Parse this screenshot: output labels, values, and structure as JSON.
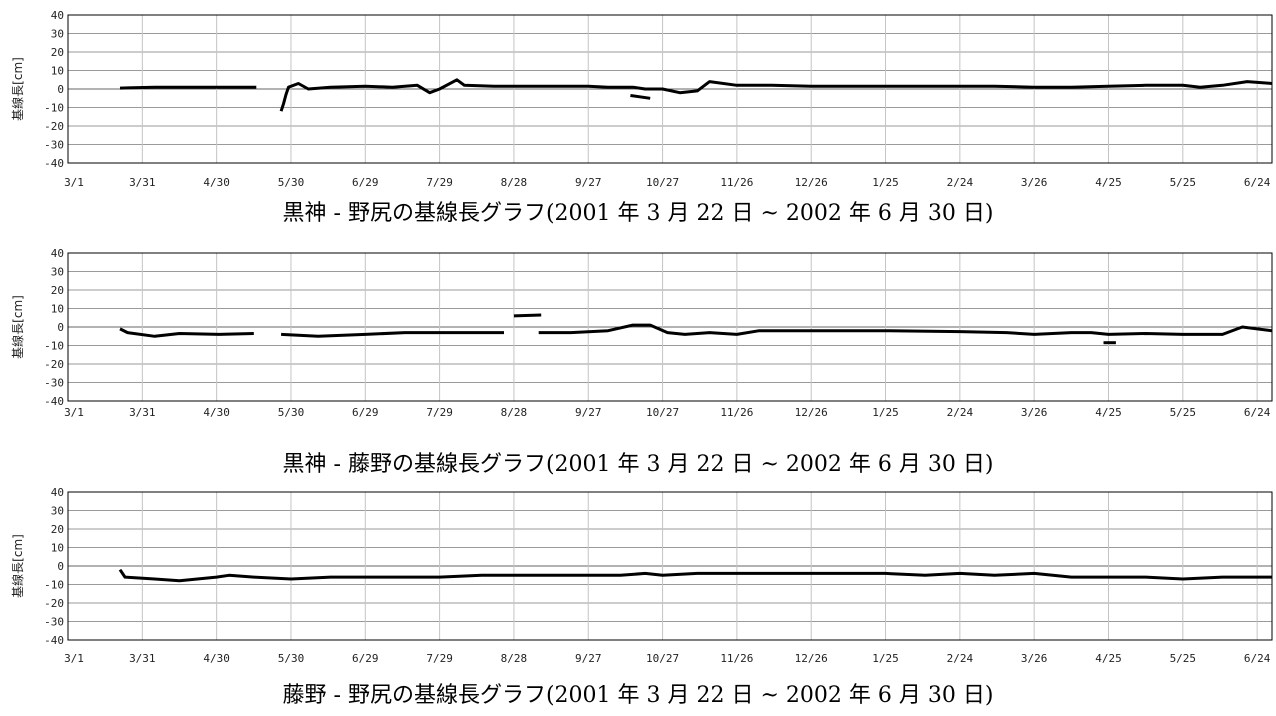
{
  "chart_data": [
    {
      "type": "line",
      "title": "黒神 - 野尻の基線長グラフ(2001 年 3 月 22 日 ~ 2002 年 6 月 30 日)",
      "ylabel": "基線長[cm]",
      "xlabel": "",
      "ylim": [
        -40,
        40
      ],
      "yticks": [
        40,
        30,
        20,
        10,
        0,
        -10,
        -20,
        -30,
        -40
      ],
      "xlim": [
        "2001-03-01",
        "2002-06-30"
      ],
      "xtick_labels": [
        "3/1",
        "3/31",
        "4/30",
        "5/30",
        "6/29",
        "7/29",
        "8/28",
        "9/27",
        "10/27",
        "11/26",
        "12/26",
        "1/25",
        "2/24",
        "3/26",
        "4/25",
        "5/25",
        "6/24"
      ],
      "grid": true,
      "series": [
        {
          "color": "#000000",
          "points": [
            [
              "2001-03-22",
              0.5
            ],
            [
              "2001-04-05",
              1
            ],
            [
              "2001-04-20",
              1
            ],
            [
              "2001-05-05",
              1
            ],
            [
              "2001-05-16",
              1
            ],
            [
              "2001-05-19",
              null
            ],
            [
              "2001-05-26",
              -12
            ],
            [
              "2001-05-27",
              -8
            ],
            [
              "2001-05-28",
              -3
            ],
            [
              "2001-05-29",
              1
            ],
            [
              "2001-06-02",
              3
            ],
            [
              "2001-06-06",
              0
            ],
            [
              "2001-06-15",
              1
            ],
            [
              "2001-06-29",
              1.5
            ],
            [
              "2001-07-10",
              1
            ],
            [
              "2001-07-20",
              2
            ],
            [
              "2001-07-25",
              -2
            ],
            [
              "2001-07-29",
              0
            ],
            [
              "2001-08-05",
              5
            ],
            [
              "2001-08-08",
              2
            ],
            [
              "2001-08-20",
              1.5
            ],
            [
              "2001-09-01",
              1.5
            ],
            [
              "2001-09-15",
              1.5
            ],
            [
              "2001-09-27",
              1.5
            ],
            [
              "2001-10-05",
              1
            ],
            [
              "2001-10-15",
              1
            ],
            [
              "2001-10-20",
              0
            ],
            [
              "2001-10-27",
              0
            ],
            [
              "2001-11-03",
              -2
            ],
            [
              "2001-11-10",
              -1
            ],
            [
              "2001-11-15",
              4
            ],
            [
              "2001-11-26",
              2
            ],
            [
              "2001-12-10",
              2
            ],
            [
              "2001-12-26",
              1.5
            ],
            [
              "2002-01-10",
              1.5
            ],
            [
              "2002-01-25",
              1.5
            ],
            [
              "2002-02-10",
              1.5
            ],
            [
              "2002-02-24",
              1.5
            ],
            [
              "2002-03-10",
              1.5
            ],
            [
              "2002-03-26",
              1
            ],
            [
              "2002-04-10",
              1
            ],
            [
              "2002-04-25",
              1.5
            ],
            [
              "2002-05-10",
              2
            ],
            [
              "2002-05-25",
              2
            ],
            [
              "2002-06-01",
              1
            ],
            [
              "2002-06-10",
              2
            ],
            [
              "2002-06-20",
              4
            ],
            [
              "2002-06-30",
              3
            ]
          ]
        },
        {
          "color": "#000000",
          "points": [
            [
              "2001-10-14",
              -3.5
            ],
            [
              "2001-10-22",
              -5
            ]
          ]
        }
      ]
    },
    {
      "type": "line",
      "title": "黒神 - 藤野の基線長グラフ(2001 年 3 月 22 日 ~ 2002 年 6 月 30 日)",
      "ylabel": "基線長[cm]",
      "xlabel": "",
      "ylim": [
        -40,
        40
      ],
      "yticks": [
        40,
        30,
        20,
        10,
        0,
        -10,
        -20,
        -30,
        -40
      ],
      "xlim": [
        "2001-03-01",
        "2002-06-30"
      ],
      "xtick_labels": [
        "3/1",
        "3/31",
        "4/30",
        "5/30",
        "6/29",
        "7/29",
        "8/28",
        "9/27",
        "10/27",
        "11/26",
        "12/26",
        "1/25",
        "2/24",
        "3/26",
        "4/25",
        "5/25",
        "6/24"
      ],
      "grid": true,
      "series": [
        {
          "color": "#000000",
          "points": [
            [
              "2001-03-22",
              -1
            ],
            [
              "2001-03-25",
              -3
            ],
            [
              "2001-04-05",
              -5
            ],
            [
              "2001-04-15",
              -3.5
            ],
            [
              "2001-05-01",
              -4
            ],
            [
              "2001-05-15",
              -3.5
            ],
            [
              "2001-05-18",
              null
            ],
            [
              "2001-05-26",
              -4
            ],
            [
              "2001-06-10",
              -5
            ],
            [
              "2001-06-29",
              -4
            ],
            [
              "2001-07-15",
              -3
            ],
            [
              "2001-07-29",
              -3
            ],
            [
              "2001-08-10",
              -3
            ],
            [
              "2001-08-24",
              -3
            ],
            [
              "2001-08-26",
              null
            ],
            [
              "2001-09-07",
              -3
            ],
            [
              "2001-09-20",
              -3
            ],
            [
              "2001-10-05",
              -2
            ],
            [
              "2001-10-15",
              1
            ],
            [
              "2001-10-22",
              1
            ],
            [
              "2001-10-29",
              -3
            ],
            [
              "2001-11-05",
              -4
            ],
            [
              "2001-11-15",
              -3
            ],
            [
              "2001-11-26",
              -4
            ],
            [
              "2001-12-05",
              -2
            ],
            [
              "2001-12-26",
              -2
            ],
            [
              "2002-01-25",
              -2
            ],
            [
              "2002-02-24",
              -2.5
            ],
            [
              "2002-03-15",
              -3
            ],
            [
              "2002-03-26",
              -4
            ],
            [
              "2002-04-10",
              -3
            ],
            [
              "2002-04-18",
              -3
            ],
            [
              "2002-04-25",
              -4
            ],
            [
              "2002-05-10",
              -3.5
            ],
            [
              "2002-05-25",
              -4
            ],
            [
              "2002-06-10",
              -4
            ],
            [
              "2002-06-18",
              0
            ],
            [
              "2002-06-30",
              -2
            ]
          ]
        },
        {
          "color": "#000000",
          "points": [
            [
              "2001-08-28",
              6
            ],
            [
              "2001-09-08",
              6.5
            ]
          ]
        },
        {
          "color": "#000000",
          "points": [
            [
              "2002-04-23",
              -8.5
            ],
            [
              "2002-04-28",
              -8.5
            ]
          ]
        }
      ]
    },
    {
      "type": "line",
      "title": "藤野 - 野尻の基線長グラフ(2001 年 3 月 22 日 ~ 2002 年 6 月 30 日)",
      "ylabel": "基線長[cm]",
      "xlabel": "",
      "ylim": [
        -40,
        40
      ],
      "yticks": [
        40,
        30,
        20,
        10,
        0,
        -10,
        -20,
        -30,
        -40
      ],
      "xlim": [
        "2001-03-01",
        "2002-06-30"
      ],
      "xtick_labels": [
        "3/1",
        "3/31",
        "4/30",
        "5/30",
        "6/29",
        "7/29",
        "8/28",
        "9/27",
        "10/27",
        "11/26",
        "12/26",
        "1/25",
        "2/24",
        "3/26",
        "4/25",
        "5/25",
        "6/24"
      ],
      "grid": true,
      "series": [
        {
          "color": "#000000",
          "points": [
            [
              "2001-03-22",
              -2
            ],
            [
              "2001-03-24",
              -6
            ],
            [
              "2001-04-05",
              -7
            ],
            [
              "2001-04-15",
              -8
            ],
            [
              "2001-04-30",
              -6
            ],
            [
              "2001-05-05",
              -5
            ],
            [
              "2001-05-15",
              -6
            ],
            [
              "2001-05-30",
              -7
            ],
            [
              "2001-06-15",
              -6
            ],
            [
              "2001-06-29",
              -6
            ],
            [
              "2001-07-15",
              -6
            ],
            [
              "2001-07-29",
              -6
            ],
            [
              "2001-08-15",
              -5
            ],
            [
              "2001-08-28",
              -5
            ],
            [
              "2001-09-15",
              -5
            ],
            [
              "2001-09-27",
              -5
            ],
            [
              "2001-10-10",
              -5
            ],
            [
              "2001-10-20",
              -4
            ],
            [
              "2001-10-27",
              -5
            ],
            [
              "2001-11-10",
              -4
            ],
            [
              "2001-11-26",
              -4
            ],
            [
              "2001-12-10",
              -4
            ],
            [
              "2001-12-26",
              -4
            ],
            [
              "2002-01-10",
              -4
            ],
            [
              "2002-01-25",
              -4
            ],
            [
              "2002-02-10",
              -5
            ],
            [
              "2002-02-24",
              -4
            ],
            [
              "2002-03-10",
              -5
            ],
            [
              "2002-03-26",
              -4
            ],
            [
              "2002-04-10",
              -6
            ],
            [
              "2002-04-25",
              -6
            ],
            [
              "2002-05-10",
              -6
            ],
            [
              "2002-05-25",
              -7
            ],
            [
              "2002-06-10",
              -6
            ],
            [
              "2002-06-30",
              -6
            ]
          ]
        }
      ]
    }
  ]
}
